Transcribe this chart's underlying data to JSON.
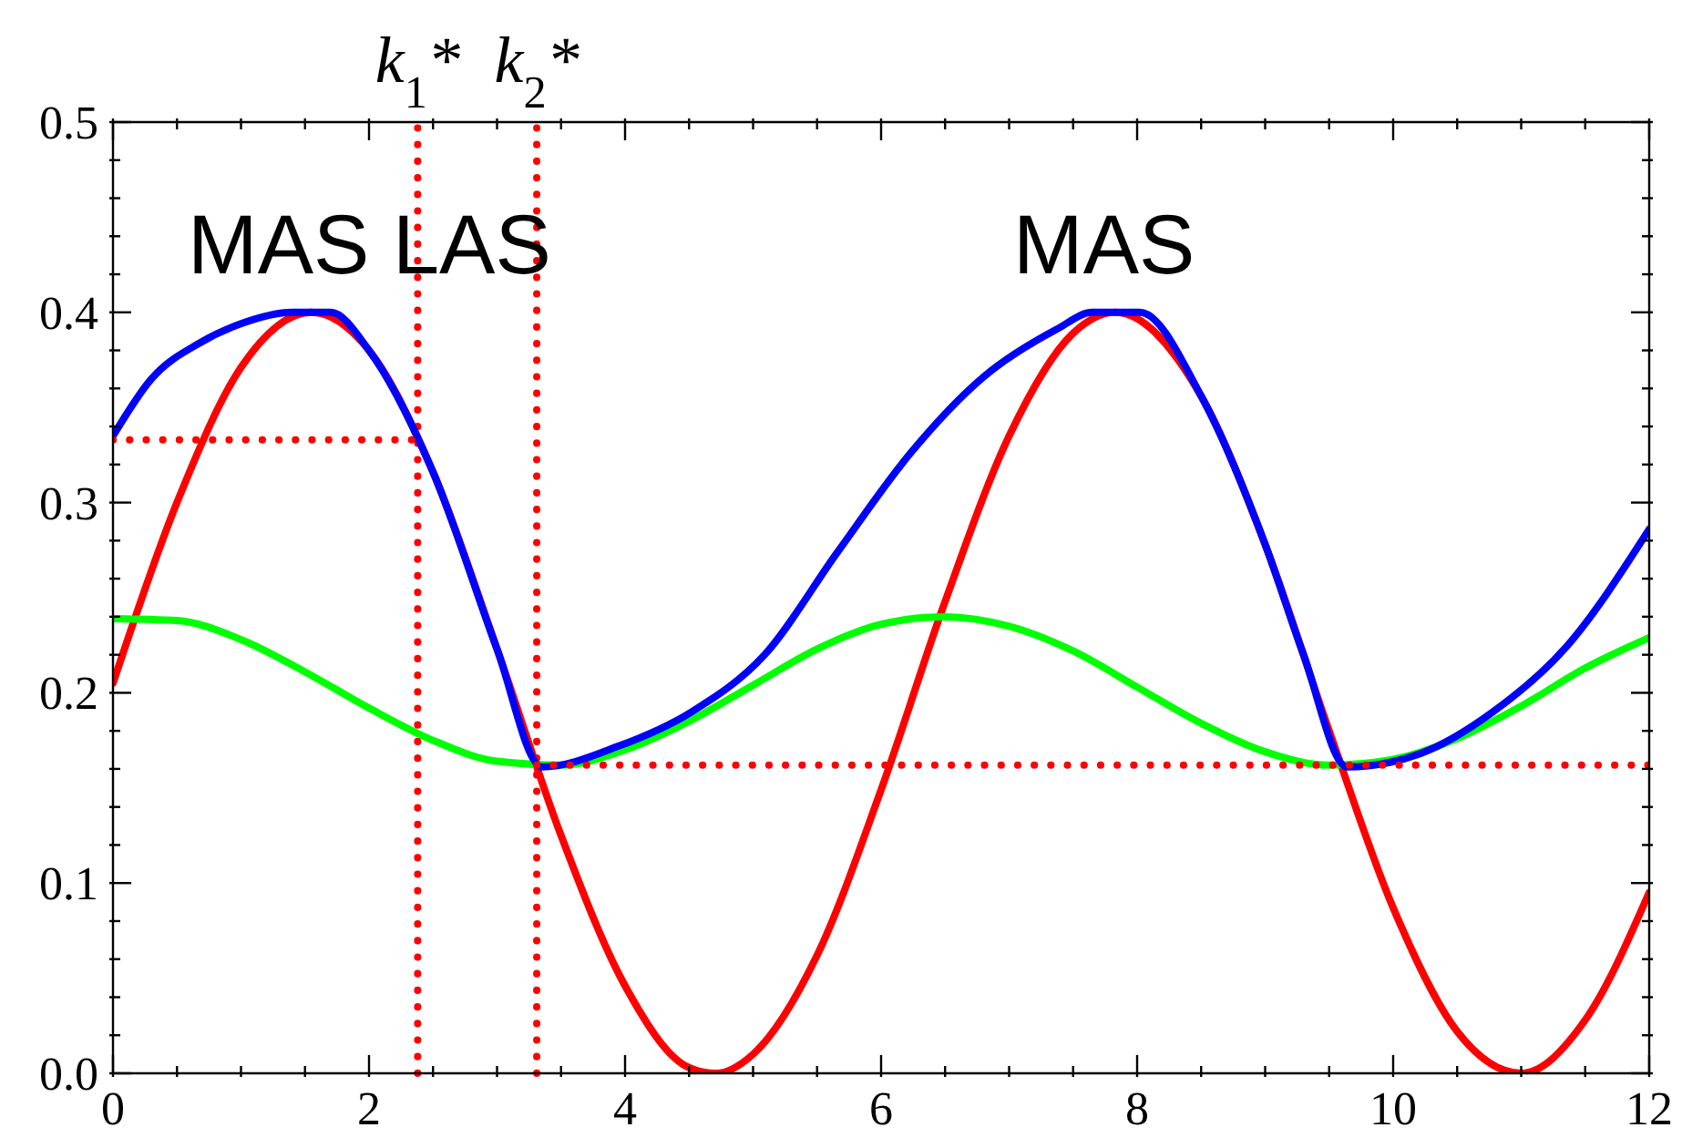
{
  "chart_data": {
    "type": "line",
    "x": [
      0,
      0.5,
      1,
      1.5,
      2,
      2.5,
      3,
      3.5,
      4,
      4.5,
      5,
      5.5,
      6,
      6.5,
      7,
      7.5,
      8,
      8.5,
      9,
      9.5,
      10,
      10.5,
      11,
      11.5,
      12
    ],
    "xlim": [
      0,
      12
    ],
    "ylim": [
      0,
      0.5
    ],
    "xticks": [
      0,
      {
        "value": 0.5,
        "label": null
      },
      {
        "value": 1,
        "label": null
      },
      {
        "value": 1.5,
        "label": null
      },
      2,
      {
        "value": 2.5,
        "label": null
      },
      {
        "value": 3,
        "label": null
      },
      {
        "value": 3.5,
        "label": null
      },
      4,
      {
        "value": 4.5,
        "label": null
      },
      {
        "value": 5,
        "label": null
      },
      {
        "value": 5.5,
        "label": null
      },
      6,
      {
        "value": 6.5,
        "label": null
      },
      {
        "value": 7,
        "label": null
      },
      {
        "value": 7.5,
        "label": null
      },
      8,
      {
        "value": 8.5,
        "label": null
      },
      {
        "value": 9,
        "label": null
      },
      {
        "value": 9.5,
        "label": null
      },
      10,
      {
        "value": 10.5,
        "label": null
      },
      {
        "value": 11,
        "label": null
      },
      {
        "value": 11.5,
        "label": null
      },
      12
    ],
    "yticks": [
      {
        "value": 0,
        "label": "0.0"
      },
      {
        "value": 0.02,
        "label": null
      },
      {
        "value": 0.04,
        "label": null
      },
      {
        "value": 0.06,
        "label": null
      },
      {
        "value": 0.08,
        "label": null
      },
      0.1,
      {
        "value": 0.12,
        "label": null
      },
      {
        "value": 0.14,
        "label": null
      },
      {
        "value": 0.16,
        "label": null
      },
      {
        "value": 0.18,
        "label": null
      },
      0.2,
      {
        "value": 0.22,
        "label": null
      },
      {
        "value": 0.24,
        "label": null
      },
      {
        "value": 0.26,
        "label": null
      },
      {
        "value": 0.28,
        "label": null
      },
      0.3,
      {
        "value": 0.32,
        "label": null
      },
      {
        "value": 0.34,
        "label": null
      },
      {
        "value": 0.36,
        "label": null
      },
      {
        "value": 0.38,
        "label": null
      },
      0.4,
      {
        "value": 0.42,
        "label": null
      },
      {
        "value": 0.44,
        "label": null
      },
      {
        "value": 0.46,
        "label": null
      },
      {
        "value": 0.48,
        "label": null
      },
      0.5
    ],
    "series": [
      {
        "color": "#ff0000",
        "x": [
          0,
          0.5,
          1,
          1.55,
          2,
          2.5,
          3,
          3.5,
          4,
          4.5,
          4.71,
          5,
          5.5,
          6,
          6.5,
          7,
          7.5,
          7.83,
          8.5,
          9,
          9.5,
          10,
          10.5,
          11,
          11.5,
          12
        ],
        "values": [
          0.205,
          0.3,
          0.371,
          0.4,
          0.38,
          0.316,
          0.223,
          0.125,
          0.046,
          0.003,
          0,
          0.01,
          0.062,
          0.149,
          0.248,
          0.335,
          0.389,
          0.4,
          0.356,
          0.278,
          0.18,
          0.087,
          0.022,
          0,
          0.028,
          0.095
        ]
      },
      {
        "color": "#00ff00",
        "values": [
          0.239,
          0.238,
          0.228,
          0.211,
          0.192,
          0.175,
          0.164,
          0.162,
          0.17,
          0.185,
          0.204,
          0.223,
          0.236,
          0.24,
          0.235,
          0.222,
          0.203,
          0.184,
          0.169,
          0.162,
          0.165,
          0.176,
          0.193,
          0.213,
          0.229
        ]
      },
      {
        "color": "#0000ff",
        "x": [
          0,
          0.3,
          0.68,
          1,
          1.4,
          1.7,
          2,
          2.5,
          3,
          3.35,
          3.95,
          4.52,
          5.09,
          5.66,
          6.23,
          6.8,
          7.37,
          7.65,
          8.02,
          8.5,
          9,
          9.3,
          9.64,
          10.21,
          10.78,
          11.35,
          12
        ],
        "values": [
          0.335,
          0.365,
          0.384,
          0.394,
          0.4,
          0.4,
          0.38,
          0.316,
          0.223,
          0.161,
          0.172,
          0.19,
          0.22,
          0.274,
          0.326,
          0.366,
          0.391,
          0.4,
          0.4,
          0.356,
          0.278,
          0.22,
          0.161,
          0.168,
          0.19,
          0.224,
          0.286
        ]
      },
      {
        "color": "#ff0000",
        "line_style": "dotted",
        "x": [
          0,
          2.38
        ],
        "values": [
          0.333,
          0.333
        ]
      },
      {
        "color": "#ff0000",
        "line_style": "dotted",
        "x": [
          3.31,
          12
        ],
        "values": [
          0.162,
          0.162
        ]
      }
    ],
    "ref_lines": [
      {
        "axis": "x",
        "value": 2.38,
        "label": "k$_{1}$*",
        "color": "#ff0000",
        "line_style": "dotted"
      },
      {
        "axis": "x",
        "value": 3.31,
        "label": "k$_{2}$*",
        "color": "#ff0000",
        "line_style": "dotted"
      }
    ],
    "annotations": [
      "MAS LAS",
      "MAS"
    ]
  }
}
